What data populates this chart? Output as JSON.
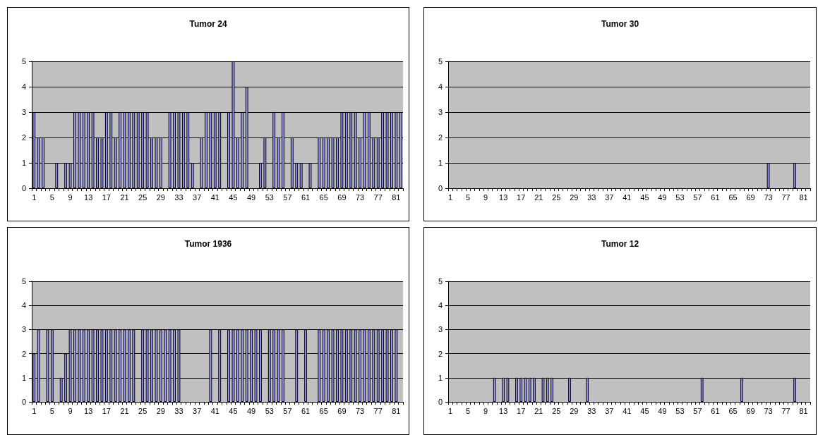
{
  "chart_data": [
    {
      "type": "bar",
      "title": "Tumor 24",
      "categories": [
        "1",
        null,
        null,
        null,
        "5",
        null,
        null,
        null,
        "9",
        null,
        null,
        null,
        "13",
        null,
        null,
        null,
        "17",
        null,
        null,
        null,
        "21",
        null,
        null,
        null,
        "25",
        null,
        null,
        null,
        "29",
        null,
        null,
        null,
        "33",
        null,
        null,
        null,
        "37",
        null,
        null,
        null,
        "41",
        null,
        null,
        null,
        "45",
        null,
        null,
        null,
        "49",
        null,
        null,
        null,
        "53",
        null,
        null,
        null,
        "57",
        null,
        null,
        null,
        "61",
        null,
        null,
        null,
        "65",
        null,
        null,
        null,
        "69",
        null,
        null,
        null,
        "73",
        null,
        null,
        null,
        "77",
        null,
        null,
        null,
        "81",
        null
      ],
      "series": [
        {
          "color": "#9999ff",
          "values": [
            3,
            2,
            2,
            0,
            0,
            1,
            0,
            1,
            1,
            3,
            3,
            3,
            3,
            3,
            2,
            2,
            3,
            3,
            2,
            3,
            3,
            3,
            3,
            3,
            3,
            3,
            2,
            2,
            2,
            0,
            3,
            3,
            3,
            3,
            3,
            1,
            0,
            2,
            3,
            3,
            3,
            3,
            0,
            3,
            5,
            2,
            3,
            4,
            0,
            0,
            1,
            2,
            0,
            3,
            2,
            3,
            0,
            2,
            1,
            1,
            0,
            1,
            0,
            2,
            2,
            2,
            2,
            2,
            3,
            3,
            3,
            3,
            2,
            3,
            3,
            2,
            2,
            3,
            3,
            3,
            3,
            3
          ]
        }
      ],
      "ylim": [
        0,
        5
      ],
      "yticks": [
        0,
        1,
        2,
        3,
        4,
        5
      ],
      "grid": "y"
    },
    {
      "type": "bar",
      "title": "Tumor 30",
      "categories": [
        "1",
        null,
        null,
        null,
        "5",
        null,
        null,
        null,
        "9",
        null,
        null,
        null,
        "13",
        null,
        null,
        null,
        "17",
        null,
        null,
        null,
        "21",
        null,
        null,
        null,
        "25",
        null,
        null,
        null,
        "29",
        null,
        null,
        null,
        "33",
        null,
        null,
        null,
        "37",
        null,
        null,
        null,
        "41",
        null,
        null,
        null,
        "45",
        null,
        null,
        null,
        "49",
        null,
        null,
        null,
        "53",
        null,
        null,
        null,
        "57",
        null,
        null,
        null,
        "61",
        null,
        null,
        null,
        "65",
        null,
        null,
        null,
        "69",
        null,
        null,
        null,
        "73",
        null,
        null,
        null,
        "77",
        null,
        null,
        null,
        "81",
        null
      ],
      "series": [
        {
          "color": "#9999ff",
          "values": [
            0,
            0,
            0,
            0,
            0,
            0,
            0,
            0,
            0,
            0,
            0,
            0,
            0,
            0,
            0,
            0,
            0,
            0,
            0,
            0,
            0,
            0,
            0,
            0,
            0,
            0,
            0,
            0,
            0,
            0,
            0,
            0,
            0,
            0,
            0,
            0,
            0,
            0,
            0,
            0,
            0,
            0,
            0,
            0,
            0,
            0,
            0,
            0,
            0,
            0,
            0,
            0,
            0,
            0,
            0,
            0,
            0,
            0,
            0,
            0,
            0,
            0,
            0,
            0,
            0,
            0,
            0,
            0,
            0,
            0,
            0,
            0,
            1,
            0,
            0,
            0,
            0,
            0,
            1,
            0,
            0,
            0
          ]
        }
      ],
      "ylim": [
        0,
        5
      ],
      "yticks": [
        0,
        1,
        2,
        3,
        4,
        5
      ],
      "grid": "y"
    },
    {
      "type": "bar",
      "title": "Tumor 1936",
      "categories": [
        "1",
        null,
        null,
        null,
        "5",
        null,
        null,
        null,
        "9",
        null,
        null,
        null,
        "13",
        null,
        null,
        null,
        "17",
        null,
        null,
        null,
        "21",
        null,
        null,
        null,
        "25",
        null,
        null,
        null,
        "29",
        null,
        null,
        null,
        "33",
        null,
        null,
        null,
        "37",
        null,
        null,
        null,
        "41",
        null,
        null,
        null,
        "45",
        null,
        null,
        null,
        "49",
        null,
        null,
        null,
        "53",
        null,
        null,
        null,
        "57",
        null,
        null,
        null,
        "61",
        null,
        null,
        null,
        "65",
        null,
        null,
        null,
        "69",
        null,
        null,
        null,
        "73",
        null,
        null,
        null,
        "77",
        null,
        null,
        null,
        "81",
        null
      ],
      "series": [
        {
          "color": "#9999ff",
          "values": [
            2,
            3,
            0,
            3,
            3,
            0,
            1,
            2,
            3,
            3,
            3,
            3,
            3,
            3,
            3,
            3,
            3,
            3,
            3,
            3,
            3,
            3,
            3,
            0,
            3,
            3,
            3,
            3,
            3,
            3,
            3,
            3,
            3,
            0,
            0,
            0,
            0,
            0,
            0,
            3,
            0,
            3,
            0,
            3,
            3,
            3,
            3,
            3,
            3,
            3,
            3,
            0,
            3,
            3,
            3,
            3,
            0,
            0,
            3,
            0,
            3,
            0,
            0,
            3,
            3,
            3,
            3,
            3,
            3,
            3,
            3,
            3,
            3,
            3,
            3,
            3,
            3,
            3,
            3,
            3,
            3,
            0
          ]
        }
      ],
      "ylim": [
        0,
        5
      ],
      "yticks": [
        0,
        1,
        2,
        3,
        4,
        5
      ],
      "grid": "y"
    },
    {
      "type": "bar",
      "title": "Tumor 12",
      "categories": [
        "1",
        null,
        null,
        null,
        "5",
        null,
        null,
        null,
        "9",
        null,
        null,
        null,
        "13",
        null,
        null,
        null,
        "17",
        null,
        null,
        null,
        "21",
        null,
        null,
        null,
        "25",
        null,
        null,
        null,
        "29",
        null,
        null,
        null,
        "33",
        null,
        null,
        null,
        "37",
        null,
        null,
        null,
        "41",
        null,
        null,
        null,
        "45",
        null,
        null,
        null,
        "49",
        null,
        null,
        null,
        "53",
        null,
        null,
        null,
        "57",
        null,
        null,
        null,
        "61",
        null,
        null,
        null,
        "65",
        null,
        null,
        null,
        "69",
        null,
        null,
        null,
        "73",
        null,
        null,
        null,
        "77",
        null,
        null,
        null,
        "81",
        null
      ],
      "series": [
        {
          "color": "#9999ff",
          "values": [
            0,
            0,
            0,
            0,
            0,
            0,
            0,
            0,
            0,
            0,
            1,
            0,
            1,
            1,
            0,
            1,
            1,
            1,
            1,
            1,
            0,
            1,
            1,
            1,
            0,
            0,
            0,
            1,
            0,
            0,
            0,
            1,
            0,
            0,
            0,
            0,
            0,
            0,
            0,
            0,
            0,
            0,
            0,
            0,
            0,
            0,
            0,
            0,
            0,
            0,
            0,
            0,
            0,
            0,
            0,
            0,
            0,
            1,
            0,
            0,
            0,
            0,
            0,
            0,
            0,
            0,
            1,
            0,
            0,
            0,
            0,
            0,
            0,
            0,
            0,
            0,
            0,
            0,
            1,
            0,
            0,
            0
          ]
        }
      ],
      "ylim": [
        0,
        5
      ],
      "yticks": [
        0,
        1,
        2,
        3,
        4,
        5
      ],
      "grid": "y"
    }
  ]
}
